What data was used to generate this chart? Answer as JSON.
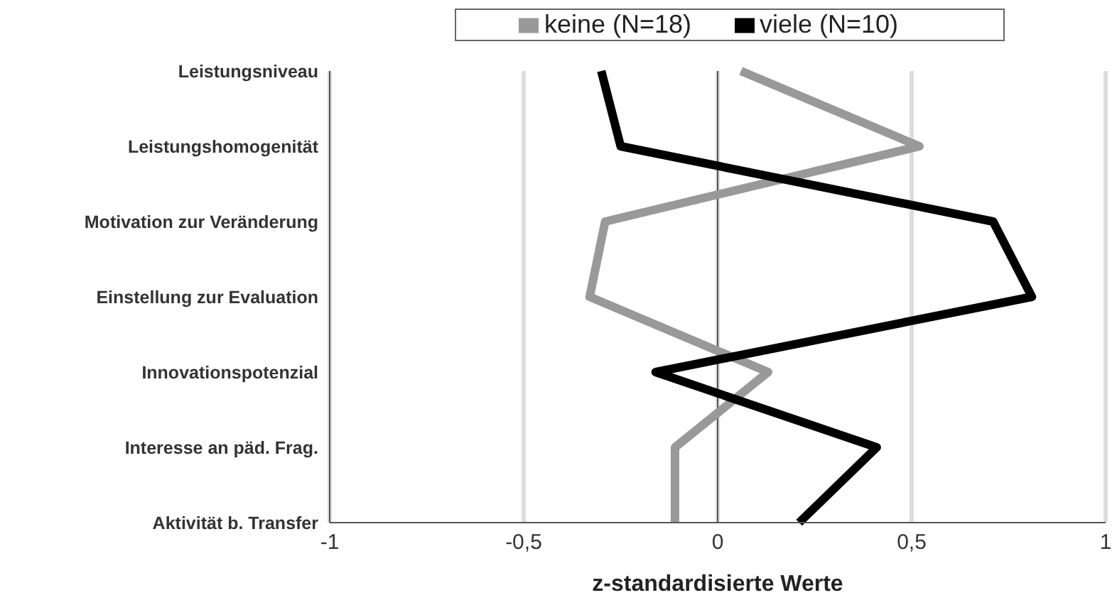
{
  "chart_data": {
    "type": "line",
    "orientation": "horizontal",
    "xlabel": "z-standardisierte Werte",
    "categories": [
      "Leistungsniveau",
      "Leistungshomogenität",
      "Motivation zur Veränderung",
      "Einstellung zur Evaluation",
      "Innovationspotenzial",
      "Interesse an päd. Frag.",
      "Aktivität b. Transfer"
    ],
    "series": [
      {
        "name": "keine (N=18)",
        "color": "#999999",
        "values": [
          0.06,
          0.52,
          -0.29,
          -0.33,
          0.13,
          -0.11,
          -0.11
        ]
      },
      {
        "name": "viele (N=10)",
        "color": "#000000",
        "values": [
          -0.3,
          -0.25,
          0.71,
          0.81,
          -0.16,
          0.41,
          0.21
        ]
      }
    ],
    "xlim": [
      -1,
      1
    ],
    "xticks": [
      {
        "value": -1,
        "label": "-1"
      },
      {
        "value": -0.5,
        "label": "-0,5"
      },
      {
        "value": 0,
        "label": "0"
      },
      {
        "value": 0.5,
        "label": "0,5"
      },
      {
        "value": 1,
        "label": "1"
      }
    ],
    "ref_lines": [
      {
        "axis": "x",
        "value": 0,
        "color": "#555555"
      }
    ],
    "grid": "x",
    "legend": "top",
    "marker": "none",
    "line_style": "solid"
  }
}
